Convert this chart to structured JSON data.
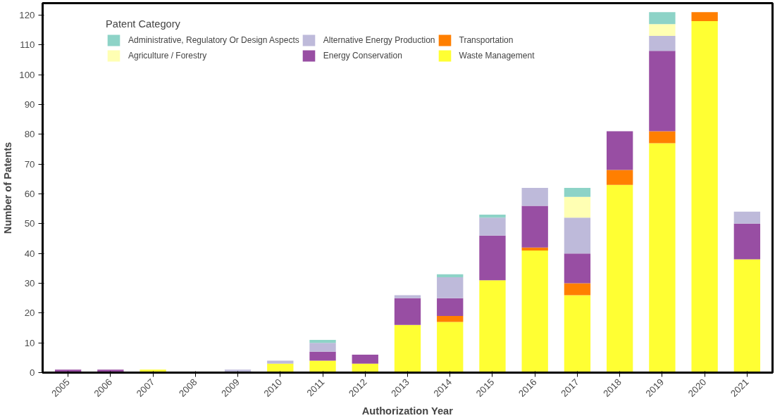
{
  "chart_data": {
    "type": "bar",
    "stacked": true,
    "xlabel": "Authorization Year",
    "ylabel": "Number of Patents",
    "legend_title": "Patent Category",
    "legend": "top left",
    "grid": false,
    "categories": [
      "2005",
      "2006",
      "2007",
      "2008",
      "2009",
      "2010",
      "2011",
      "2012",
      "2013",
      "2014",
      "2015",
      "2016",
      "2017",
      "2018",
      "2019",
      "2020",
      "2021"
    ],
    "ylim": [
      0,
      124
    ],
    "yticks": [
      0,
      10,
      20,
      30,
      40,
      50,
      60,
      70,
      80,
      90,
      100,
      110,
      120
    ],
    "series": [
      {
        "name": "Waste Management",
        "color": "#ffff33",
        "values": [
          0,
          0,
          1,
          0,
          0,
          3,
          4,
          3,
          16,
          17,
          31,
          41,
          26,
          63,
          77,
          118,
          38
        ]
      },
      {
        "name": "Transportation",
        "color": "#ff7f00",
        "values": [
          0,
          0,
          0,
          0,
          0,
          0,
          0,
          0,
          0,
          2,
          0,
          1,
          4,
          5,
          4,
          3,
          0
        ]
      },
      {
        "name": "Energy Conservation",
        "color": "#984ea3",
        "values": [
          1,
          1,
          0,
          0,
          0,
          0,
          3,
          3,
          9,
          6,
          15,
          14,
          10,
          13,
          27,
          0,
          12
        ]
      },
      {
        "name": "Alternative Energy Production",
        "color": "#bebada",
        "values": [
          0,
          0,
          0,
          0,
          1,
          1,
          3,
          0,
          1,
          7,
          6,
          6,
          12,
          0,
          5,
          0,
          4
        ]
      },
      {
        "name": "Agriculture / Forestry",
        "color": "#ffffb3",
        "values": [
          0,
          0,
          0,
          0,
          0,
          0,
          0,
          0,
          0,
          0,
          0,
          0,
          7,
          0,
          4,
          0,
          0
        ]
      },
      {
        "name": "Administrative, Regulatory Or Design Aspects",
        "color": "#8dd3c7",
        "values": [
          0,
          0,
          0,
          0,
          0,
          0,
          1,
          0,
          0,
          1,
          1,
          0,
          3,
          0,
          4,
          0,
          0
        ]
      }
    ]
  }
}
